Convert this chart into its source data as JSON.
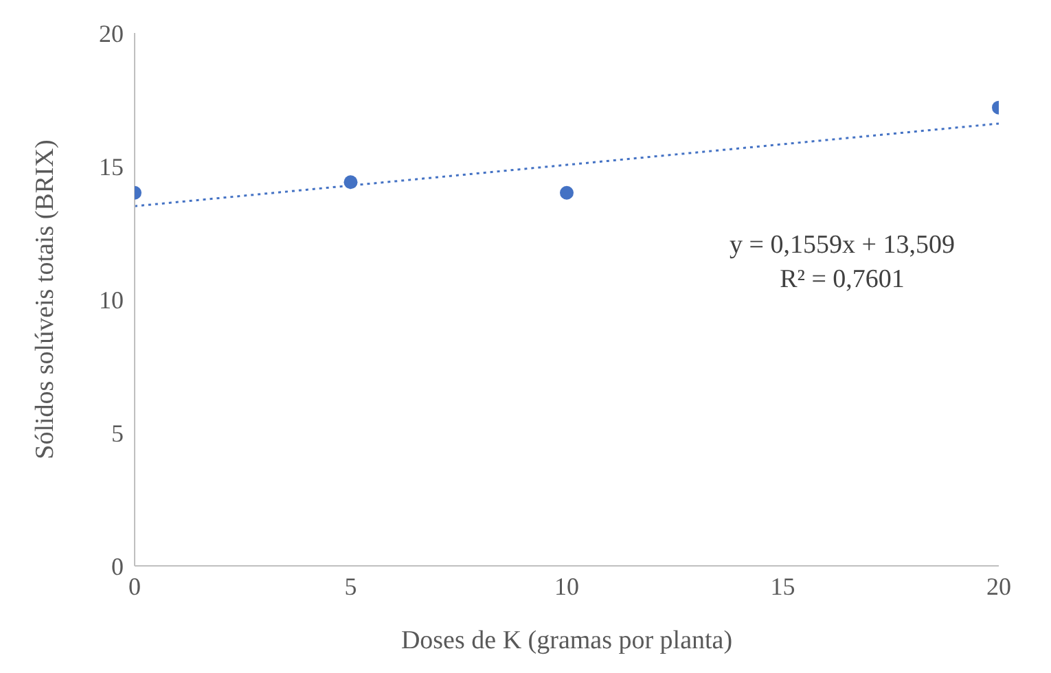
{
  "chart_data": {
    "type": "scatter",
    "xlabel": "Doses de K (gramas por planta)",
    "ylabel": "Sólidos solúveis totais (BRIX)",
    "x": [
      0,
      5,
      10,
      20
    ],
    "xlim": [
      0,
      20
    ],
    "xticks": [
      0,
      5,
      10,
      15,
      20
    ],
    "ylim": [
      0,
      20
    ],
    "yticks": [
      0,
      5,
      10,
      15,
      20
    ],
    "grid": false,
    "legend": false,
    "marker": "circle",
    "series": [
      {
        "color": "#4472c4",
        "values": [
          14.0,
          14.4,
          14.0,
          17.2
        ]
      },
      {
        "type": "line",
        "color": "#4472c4",
        "x": [
          0,
          20
        ],
        "values": [
          13.5,
          16.6
        ],
        "line_style": "dotted",
        "marker": "none"
      }
    ],
    "annotations": [
      "y = 0,1559x + 13,509",
      "R² = 0,7601"
    ]
  }
}
